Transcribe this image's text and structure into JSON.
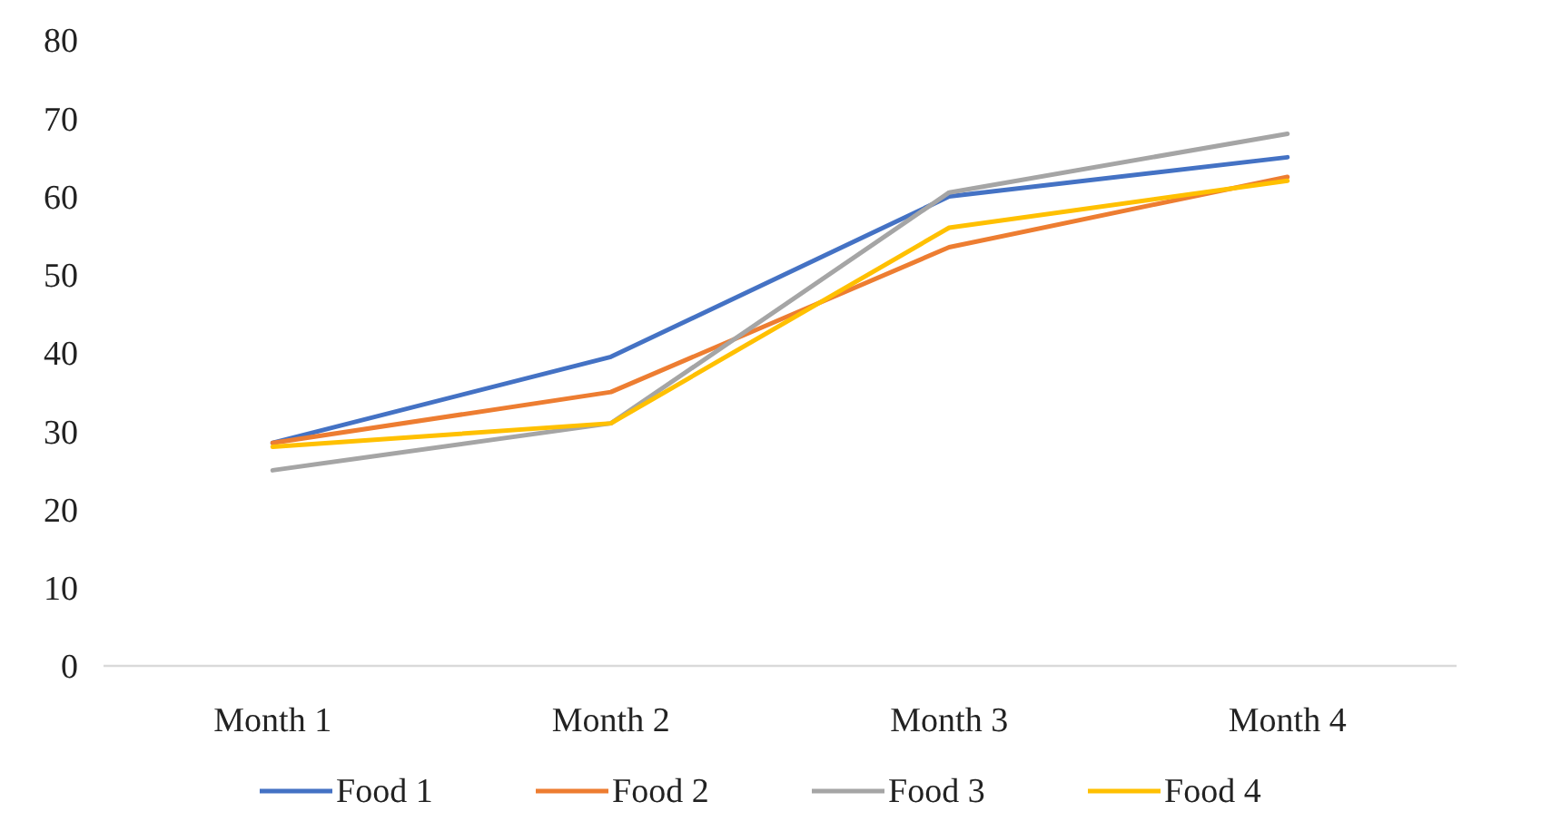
{
  "chart_data": {
    "type": "line",
    "categories": [
      "Month 1",
      "Month 2",
      "Month 3",
      "Month 4"
    ],
    "series": [
      {
        "name": "Food 1",
        "color": "#4472c4",
        "values": [
          28.5,
          39.5,
          60,
          65
        ]
      },
      {
        "name": "Food 2",
        "color": "#ed7d31",
        "values": [
          28.5,
          35,
          53.5,
          62.5
        ]
      },
      {
        "name": "Food 3",
        "color": "#a5a5a5",
        "values": [
          25,
          31,
          60.5,
          68
        ]
      },
      {
        "name": "Food 4",
        "color": "#ffc000",
        "values": [
          28,
          31,
          56,
          62
        ]
      }
    ],
    "ylim": [
      0,
      80
    ],
    "yticks": [
      0,
      10,
      20,
      30,
      40,
      50,
      60,
      70,
      80
    ],
    "grid": false,
    "legend": "bottom",
    "marker": "none",
    "line_style": "solid"
  }
}
